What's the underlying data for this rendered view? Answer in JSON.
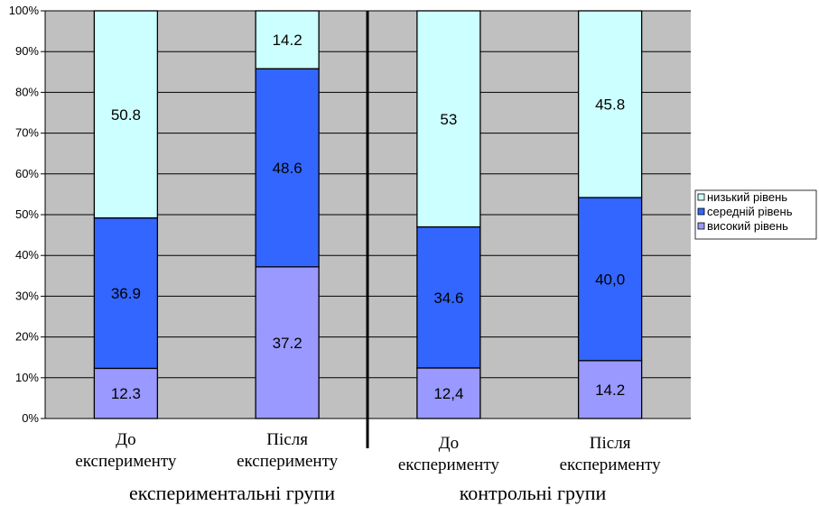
{
  "chart_data": {
    "type": "bar",
    "stacked": true,
    "percent": true,
    "categories": [
      [
        "До",
        "експерименту"
      ],
      [
        "Після",
        "експерименту"
      ],
      [
        "До",
        "експерименту"
      ],
      [
        "Після",
        "експерименту"
      ]
    ],
    "groups": [
      {
        "label": "експериментальні групи",
        "categories": [
          0,
          1
        ]
      },
      {
        "label": "контрольні групи",
        "categories": [
          2,
          3
        ]
      }
    ],
    "series": [
      {
        "name": "високий рівень",
        "color": "#9999ff",
        "values": [
          12.3,
          37.2,
          12.4,
          14.2
        ],
        "labels": [
          "12.3",
          "37.2",
          "12,4",
          "14.2"
        ]
      },
      {
        "name": "середній рівень",
        "color": "#3366ff",
        "values": [
          36.9,
          48.6,
          34.6,
          40.0
        ],
        "labels": [
          "36.9",
          "48.6",
          "34.6",
          "40,0"
        ]
      },
      {
        "name": "низький рівень",
        "color": "#ccffff",
        "values": [
          50.8,
          14.2,
          53,
          45.8
        ],
        "labels": [
          "50.8",
          "14.2",
          "53",
          "45.8"
        ]
      }
    ],
    "ylim": [
      0,
      100
    ],
    "yticks": [
      "0%",
      "10%",
      "20%",
      "30%",
      "40%",
      "50%",
      "60%",
      "70%",
      "80%",
      "90%",
      "100%"
    ],
    "grid": true,
    "plot_background": "#c0c0c0",
    "legend_position": "right"
  }
}
